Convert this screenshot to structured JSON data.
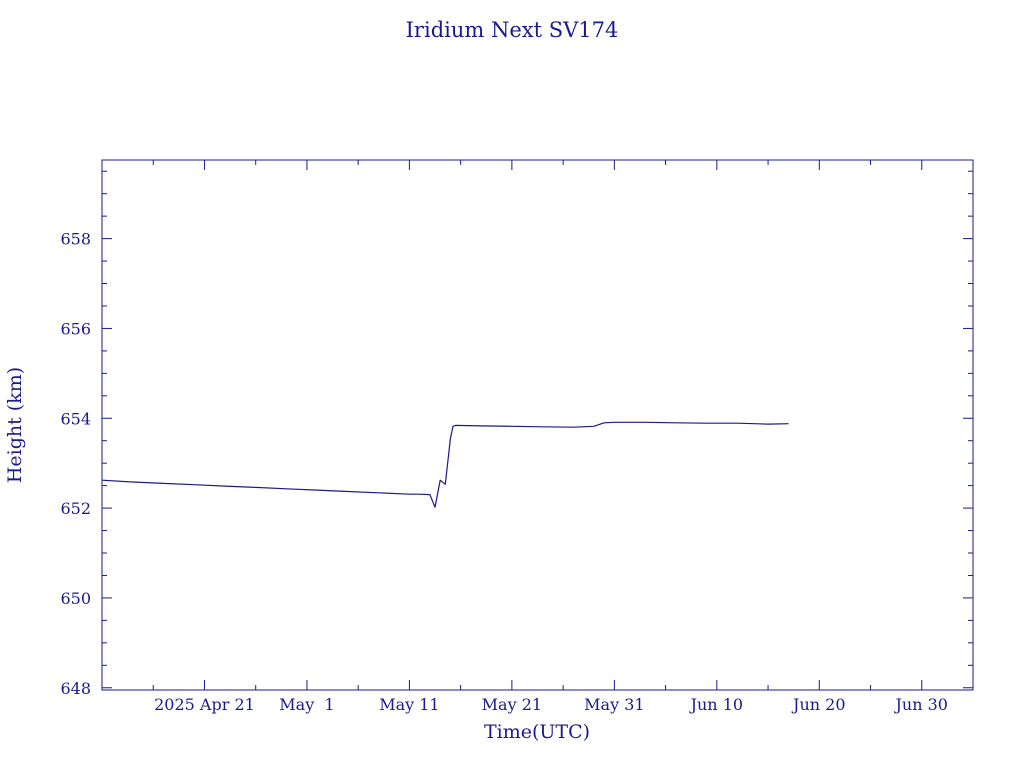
{
  "chart_data": {
    "type": "line",
    "title": "Iridium Next SV174",
    "xlabel": "Time(UTC)",
    "ylabel": "Height (km)",
    "x_type": "date",
    "xlim": [
      "2025-04-11",
      "2025-07-05"
    ],
    "ylim": [
      647.95,
      659.75
    ],
    "colors": {
      "foreground": "#1a1a8c",
      "line": "#1a1a8c"
    },
    "grid": false,
    "y_ticks": [
      {
        "value": 648,
        "label": "648"
      },
      {
        "value": 650,
        "label": "650"
      },
      {
        "value": 652,
        "label": "652"
      },
      {
        "value": 654,
        "label": "654"
      },
      {
        "value": 656,
        "label": "656"
      },
      {
        "value": 658,
        "label": "658"
      }
    ],
    "x_ticks": [
      {
        "value": "2025-04-21",
        "label": "2025 Apr 21"
      },
      {
        "value": "2025-05-01",
        "label": "May  1"
      },
      {
        "value": "2025-05-11",
        "label": "May 11"
      },
      {
        "value": "2025-05-21",
        "label": "May 21"
      },
      {
        "value": "2025-05-31",
        "label": "May 31"
      },
      {
        "value": "2025-06-10",
        "label": "Jun 10"
      },
      {
        "value": "2025-06-20",
        "label": "Jun 20"
      },
      {
        "value": "2025-06-30",
        "label": "Jun 30"
      }
    ],
    "series": [
      {
        "x": [
          "2025-04-11",
          "2025-04-14",
          "2025-04-17",
          "2025-04-20",
          "2025-04-23",
          "2025-04-26",
          "2025-04-29",
          "2025-05-02",
          "2025-05-05",
          "2025-05-08",
          "2025-05-11",
          "2025-05-12",
          "2025-05-13",
          "2025-05-13T12:00",
          "2025-05-14",
          "2025-05-14T12:00",
          "2025-05-15",
          "2025-05-15T06:00",
          "2025-05-15T12:00",
          "2025-05-18",
          "2025-05-21",
          "2025-05-24",
          "2025-05-27",
          "2025-05-29",
          "2025-05-30",
          "2025-05-31",
          "2025-06-03",
          "2025-06-06",
          "2025-06-09",
          "2025-06-12",
          "2025-06-15",
          "2025-06-17"
        ],
        "y": [
          652.62,
          652.58,
          652.55,
          652.52,
          652.49,
          652.46,
          652.43,
          652.4,
          652.37,
          652.34,
          652.31,
          652.31,
          652.3,
          652.02,
          652.62,
          652.53,
          653.55,
          653.82,
          653.84,
          653.83,
          653.82,
          653.81,
          653.8,
          653.82,
          653.9,
          653.91,
          653.91,
          653.9,
          653.89,
          653.89,
          653.87,
          653.88
        ]
      }
    ]
  }
}
